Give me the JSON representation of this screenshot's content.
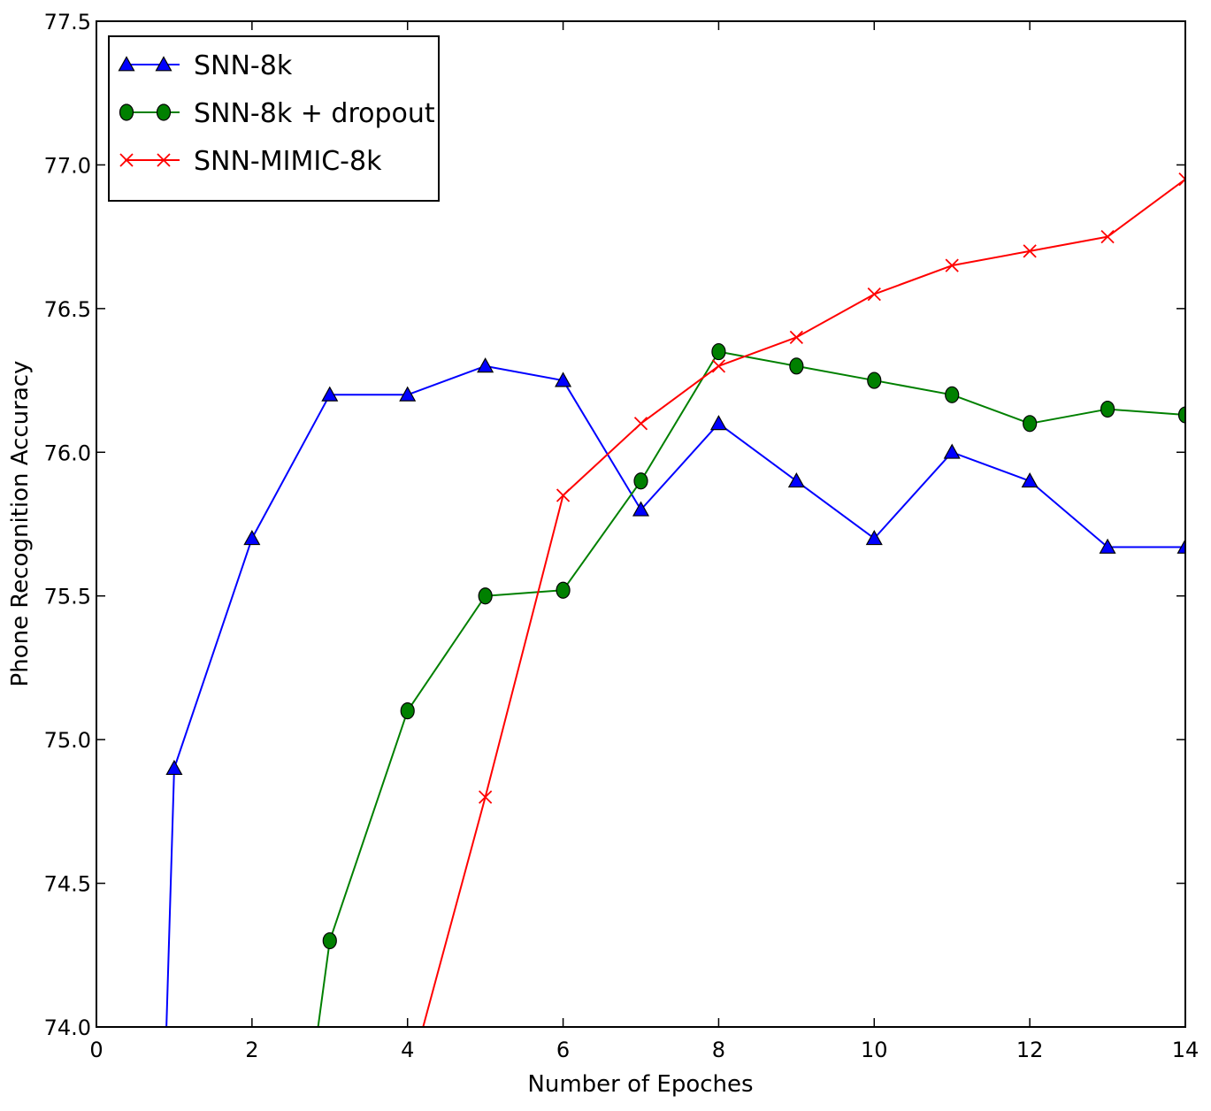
{
  "chart_data": {
    "type": "line",
    "title": "",
    "xlabel": "Number of Epoches",
    "ylabel": "Phone Recognition Accuracy",
    "xlim": [
      0,
      14
    ],
    "ylim": [
      74.0,
      77.5
    ],
    "xticks": [
      0,
      2,
      4,
      6,
      8,
      10,
      12,
      14
    ],
    "yticks": [
      74.0,
      74.5,
      75.0,
      75.5,
      76.0,
      76.5,
      77.0,
      77.5
    ],
    "xtick_labels": [
      "0",
      "2",
      "4",
      "6",
      "8",
      "10",
      "12",
      "14"
    ],
    "ytick_labels": [
      "74.0",
      "74.5",
      "75.0",
      "75.5",
      "76.0",
      "76.5",
      "77.0",
      "77.5"
    ],
    "grid": false,
    "legend_position": "top-left",
    "series": [
      {
        "name": "SNN-8k",
        "color": "#0000ff",
        "marker": "triangle",
        "x": [
          0.9,
          1,
          2,
          3,
          4,
          5,
          6,
          7,
          8,
          9,
          10,
          11,
          12,
          13,
          14
        ],
        "y": [
          74.0,
          74.9,
          75.7,
          76.2,
          76.2,
          76.3,
          76.25,
          75.8,
          76.1,
          75.9,
          75.7,
          76.0,
          75.9,
          75.67,
          75.67
        ],
        "marker_start_index": 1
      },
      {
        "name": "SNN-8k + dropout",
        "color": "#008000",
        "marker": "circle",
        "x": [
          2.85,
          3,
          4,
          5,
          6,
          7,
          8,
          9,
          10,
          11,
          12,
          13,
          14
        ],
        "y": [
          74.0,
          74.3,
          75.1,
          75.5,
          75.52,
          75.9,
          76.35,
          76.3,
          76.25,
          76.2,
          76.1,
          76.15,
          76.13
        ],
        "marker_start_index": 1
      },
      {
        "name": "SNN-MIMIC-8k",
        "color": "#ff0000",
        "marker": "x",
        "x": [
          4.2,
          5,
          6,
          7,
          8,
          9,
          10,
          11,
          12,
          13,
          14
        ],
        "y": [
          74.0,
          74.8,
          75.85,
          76.1,
          76.3,
          76.4,
          76.55,
          76.65,
          76.7,
          76.75,
          76.95
        ],
        "marker_start_index": 1
      }
    ]
  }
}
